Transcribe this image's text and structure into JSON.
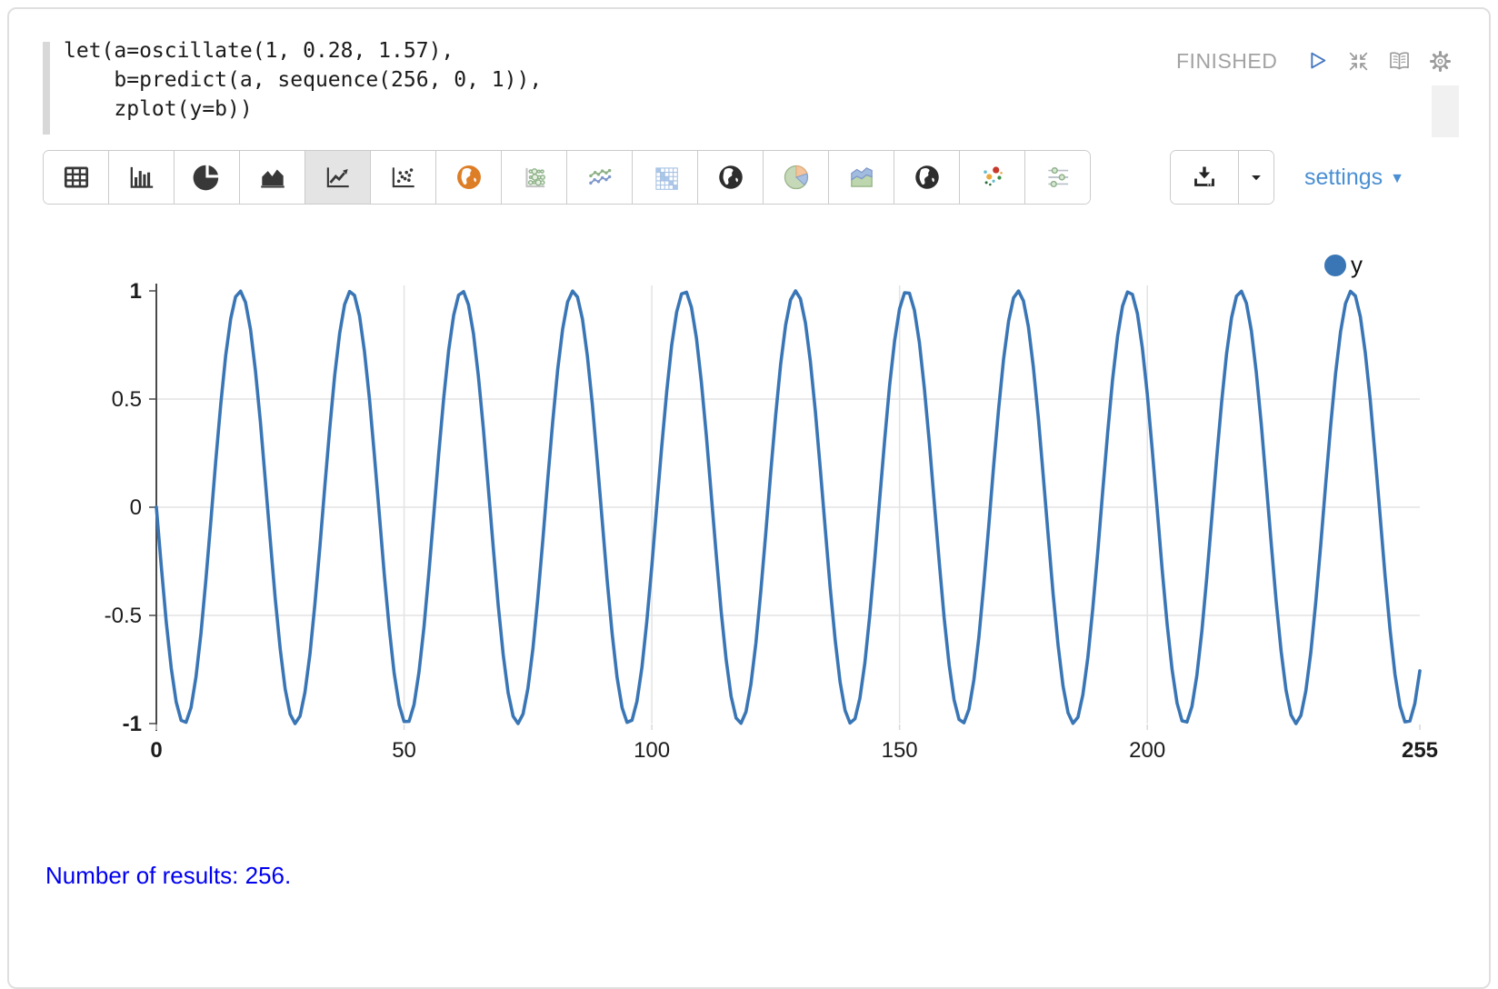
{
  "editor": {
    "status": "FINISHED",
    "code": "let(a=oscillate(1, 0.28, 1.57),\n    b=predict(a, sequence(256, 0, 1)),\n    zplot(y=b))"
  },
  "status_icons": [
    "play-icon",
    "collapse-icon",
    "book-icon",
    "gear-icon"
  ],
  "toolbar": {
    "chart_type_icons": [
      "table",
      "bar-chart",
      "pie-chart",
      "area-chart",
      "line-chart",
      "scatter-plot",
      "world-map-orange",
      "bubble-matrix",
      "multi-line-chart",
      "heatmap",
      "globe",
      "pie-chart-colored",
      "stacked-area",
      "globe-2",
      "bubble-scatter",
      "parallel-coordinates"
    ],
    "selected_chart_type": "line-chart",
    "download_icon": "download-icon",
    "download_caret_icon": "chevron-down-icon",
    "settings_label": "settings"
  },
  "chart_data": {
    "type": "line",
    "title": "",
    "xlabel": "",
    "ylabel": "",
    "x": {
      "start": 0,
      "step": 1,
      "count": 256
    },
    "series": [
      {
        "name": "y",
        "color": "#3a76b5",
        "amplitude": 1,
        "omega": 0.28,
        "phase": 1.57,
        "formula": "y = 1 * cos(0.28*x + 1.57)",
        "sample_points": [
          {
            "x": 0,
            "y": 0
          },
          {
            "x": 5.6,
            "y": -1
          },
          {
            "x": 16.8,
            "y": 1
          },
          {
            "x": 28.1,
            "y": -1
          },
          {
            "x": 39.3,
            "y": 1
          },
          {
            "x": 128.9,
            "y": 1
          },
          {
            "x": 252.4,
            "y": -1
          },
          {
            "x": 255,
            "y": -0.75
          }
        ]
      }
    ],
    "xlim": [
      0,
      255
    ],
    "ylim": [
      -1,
      1
    ],
    "x_ticks": [
      0,
      50,
      100,
      150,
      200,
      255
    ],
    "y_ticks": [
      1,
      0.5,
      0,
      -0.5,
      -1
    ],
    "x_gridlines": [
      50,
      100,
      150,
      200
    ],
    "y_gridlines": [
      0.5,
      0,
      -0.5
    ],
    "grid": true,
    "legend": {
      "position": "top-right",
      "items": [
        {
          "label": "y",
          "color": "#3a76b5"
        }
      ]
    }
  },
  "footer": {
    "results_text": "Number of results: 256."
  }
}
